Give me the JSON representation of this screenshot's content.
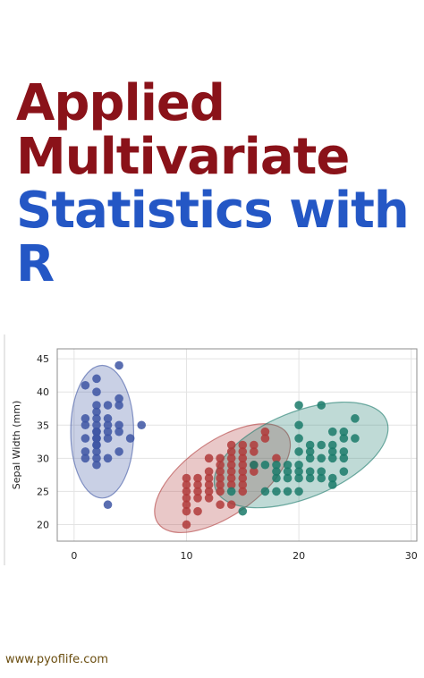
{
  "title": {
    "line1": "Applied",
    "line2": "Multivariate",
    "line3": "Statistics with",
    "line4": "R"
  },
  "colors": {
    "title_red": "#8a1219",
    "title_blue": "#2457c5",
    "group_a": "#3d55a3",
    "group_b": "#b03a3a",
    "group_c": "#1a7a6a",
    "footer": "#6b4e10"
  },
  "chart_data": {
    "type": "scatter",
    "title": "",
    "xlabel": "",
    "ylabel": "Sepal Width (mm)",
    "xlim": [
      -1.5,
      30.5
    ],
    "ylim": [
      17.5,
      46.5
    ],
    "xticks": [
      "0",
      "10",
      "20",
      "30"
    ],
    "yticks": [
      "20",
      "25",
      "30",
      "35",
      "40",
      "45"
    ],
    "grid": true,
    "series": [
      {
        "color": "#3d55a3",
        "points": [
          [
            1,
            41
          ],
          [
            2,
            42
          ],
          [
            4,
            44
          ],
          [
            2,
            40
          ],
          [
            1,
            36
          ],
          [
            2,
            38
          ],
          [
            3,
            38
          ],
          [
            4,
            38
          ],
          [
            4,
            39
          ],
          [
            2,
            35
          ],
          [
            2,
            34
          ],
          [
            3,
            35
          ],
          [
            2,
            33
          ],
          [
            3,
            33
          ],
          [
            4,
            35
          ],
          [
            2,
            37
          ],
          [
            1,
            33
          ],
          [
            2,
            32
          ],
          [
            1,
            31
          ],
          [
            2,
            31
          ],
          [
            1,
            30
          ],
          [
            2,
            30
          ],
          [
            3,
            30
          ],
          [
            2,
            29
          ],
          [
            4,
            34
          ],
          [
            6,
            35
          ],
          [
            5,
            33
          ],
          [
            3,
            23
          ],
          [
            2,
            36
          ],
          [
            3,
            36
          ],
          [
            2,
            34
          ],
          [
            1,
            35
          ],
          [
            2,
            32
          ],
          [
            3,
            34
          ],
          [
            2,
            33
          ],
          [
            4,
            31
          ]
        ],
        "ellipse": {
          "cx": 2.5,
          "cy": 34,
          "rx": 2.8,
          "ry": 10,
          "angle": 0
        }
      },
      {
        "color": "#b03a3a",
        "points": [
          [
            10,
            20
          ],
          [
            10,
            22
          ],
          [
            11,
            22
          ],
          [
            10,
            23
          ],
          [
            13,
            23
          ],
          [
            14,
            23
          ],
          [
            10,
            24
          ],
          [
            11,
            24
          ],
          [
            12,
            24
          ],
          [
            10,
            25
          ],
          [
            11,
            25
          ],
          [
            12,
            25
          ],
          [
            13,
            25
          ],
          [
            15,
            25
          ],
          [
            10,
            26
          ],
          [
            11,
            26
          ],
          [
            12,
            26
          ],
          [
            13,
            26
          ],
          [
            14,
            26
          ],
          [
            15,
            26
          ],
          [
            10,
            27
          ],
          [
            11,
            27
          ],
          [
            12,
            27
          ],
          [
            13,
            27
          ],
          [
            14,
            27
          ],
          [
            15,
            27
          ],
          [
            12,
            28
          ],
          [
            13,
            28
          ],
          [
            14,
            28
          ],
          [
            15,
            28
          ],
          [
            16,
            28
          ],
          [
            13,
            29
          ],
          [
            14,
            29
          ],
          [
            15,
            29
          ],
          [
            16,
            29
          ],
          [
            12,
            30
          ],
          [
            13,
            30
          ],
          [
            14,
            30
          ],
          [
            15,
            30
          ],
          [
            18,
            30
          ],
          [
            14,
            31
          ],
          [
            15,
            31
          ],
          [
            16,
            31
          ],
          [
            14,
            32
          ],
          [
            15,
            32
          ],
          [
            16,
            32
          ],
          [
            17,
            33
          ],
          [
            17,
            34
          ]
        ],
        "ellipse": {
          "cx": 13.2,
          "cy": 27,
          "rx": 7,
          "ry": 5.6,
          "angle": -35
        }
      },
      {
        "color": "#1a7a6a",
        "points": [
          [
            15,
            22
          ],
          [
            14,
            25
          ],
          [
            17,
            25
          ],
          [
            18,
            25
          ],
          [
            19,
            25
          ],
          [
            20,
            25
          ],
          [
            23,
            26
          ],
          [
            18,
            27
          ],
          [
            19,
            27
          ],
          [
            20,
            27
          ],
          [
            21,
            27
          ],
          [
            22,
            27
          ],
          [
            23,
            27
          ],
          [
            18,
            28
          ],
          [
            19,
            28
          ],
          [
            20,
            28
          ],
          [
            21,
            28
          ],
          [
            22,
            28
          ],
          [
            24,
            28
          ],
          [
            16,
            29
          ],
          [
            17,
            29
          ],
          [
            18,
            29
          ],
          [
            19,
            29
          ],
          [
            20,
            29
          ],
          [
            21,
            30
          ],
          [
            22,
            30
          ],
          [
            23,
            30
          ],
          [
            24,
            30
          ],
          [
            20,
            31
          ],
          [
            21,
            31
          ],
          [
            23,
            31
          ],
          [
            24,
            31
          ],
          [
            21,
            32
          ],
          [
            22,
            32
          ],
          [
            23,
            32
          ],
          [
            20,
            33
          ],
          [
            24,
            33
          ],
          [
            25,
            33
          ],
          [
            23,
            34
          ],
          [
            24,
            34
          ],
          [
            20,
            35
          ],
          [
            25,
            36
          ],
          [
            20,
            38
          ],
          [
            22,
            38
          ]
        ],
        "ellipse": {
          "cx": 20.2,
          "cy": 30.5,
          "rx": 8.2,
          "ry": 6.5,
          "angle": -22
        }
      }
    ]
  },
  "footer": {
    "url": "www.pyoflife.com"
  }
}
